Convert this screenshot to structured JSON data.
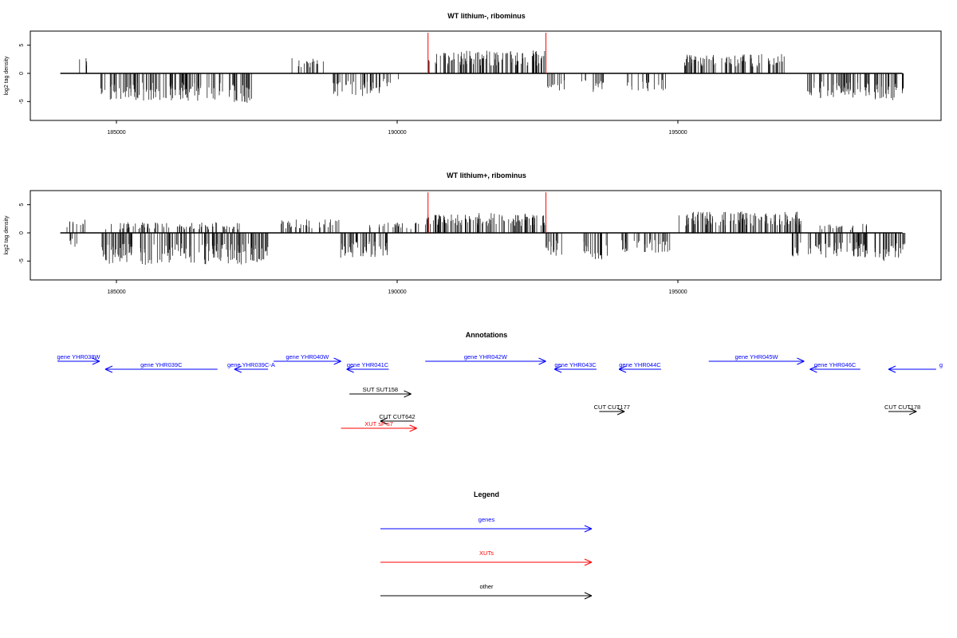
{
  "chart_data": [
    {
      "type": "bar",
      "title": "WT lithium-, ribominus",
      "ylabel": "log2 tag density",
      "xlim": [
        184000,
        199500
      ],
      "ylim": [
        -8,
        8
      ],
      "xticks": [
        185000,
        190000,
        195000
      ],
      "xtick_labels": [
        "185000",
        "190000",
        "195000"
      ],
      "yticks": [
        -5,
        0,
        5
      ],
      "ytick_labels": [
        "-5",
        "0",
        "5"
      ],
      "segments": [
        {
          "from": 184300,
          "to": 184550,
          "sign": 1,
          "mean": 2.0,
          "density": 0.3
        },
        {
          "from": 184700,
          "to": 186900,
          "sign": -1,
          "mean": 3.6,
          "density": 0.9
        },
        {
          "from": 187000,
          "to": 187450,
          "sign": -1,
          "mean": 4.0,
          "density": 0.9
        },
        {
          "from": 188100,
          "to": 188700,
          "sign": 1,
          "mean": 2.0,
          "density": 0.5
        },
        {
          "from": 188850,
          "to": 189700,
          "sign": -1,
          "mean": 3.0,
          "density": 0.8
        },
        {
          "from": 189750,
          "to": 190050,
          "sign": -1,
          "mean": 2.0,
          "density": 0.4
        },
        {
          "from": 190550,
          "to": 192650,
          "sign": 1,
          "mean": 3.0,
          "density": 1.0
        },
        {
          "from": 192650,
          "to": 193000,
          "sign": -1,
          "mean": 2.5,
          "density": 0.6
        },
        {
          "from": 193250,
          "to": 193700,
          "sign": -1,
          "mean": 2.5,
          "density": 0.6
        },
        {
          "from": 194100,
          "to": 194800,
          "sign": -1,
          "mean": 2.5,
          "density": 0.5
        },
        {
          "from": 195100,
          "to": 196900,
          "sign": 1,
          "mean": 2.6,
          "density": 0.9
        },
        {
          "from": 197300,
          "to": 198450,
          "sign": -1,
          "mean": 3.3,
          "density": 0.9
        },
        {
          "from": 198500,
          "to": 199050,
          "sign": -1,
          "mean": 3.6,
          "density": 0.9
        }
      ],
      "highlights": [
        {
          "x": 190550,
          "y": 7.2
        },
        {
          "x": 192650,
          "y": 7.2
        }
      ]
    },
    {
      "type": "bar",
      "title": "WT lithium+, ribominus",
      "ylabel": "log2 tag density",
      "xlim": [
        184000,
        199500
      ],
      "ylim": [
        -8,
        8
      ],
      "xticks": [
        185000,
        190000,
        195000
      ],
      "xtick_labels": [
        "185000",
        "190000",
        "195000"
      ],
      "yticks": [
        -5,
        0,
        5
      ],
      "ytick_labels": [
        "-5",
        "0",
        "5"
      ],
      "segments": [
        {
          "from": 184050,
          "to": 184450,
          "sign": 1,
          "mean": 1.8,
          "density": 0.5
        },
        {
          "from": 184100,
          "to": 184300,
          "sign": -1,
          "mean": 2.0,
          "density": 0.5
        },
        {
          "from": 184700,
          "to": 187700,
          "sign": -1,
          "mean": 4.2,
          "density": 1.0
        },
        {
          "from": 184800,
          "to": 187200,
          "sign": 1,
          "mean": 1.4,
          "density": 0.6
        },
        {
          "from": 187900,
          "to": 189000,
          "sign": 1,
          "mean": 1.8,
          "density": 0.6
        },
        {
          "from": 188950,
          "to": 189850,
          "sign": -1,
          "mean": 3.3,
          "density": 1.0
        },
        {
          "from": 189500,
          "to": 190400,
          "sign": 1,
          "mean": 1.4,
          "density": 0.5
        },
        {
          "from": 190500,
          "to": 192650,
          "sign": 1,
          "mean": 2.6,
          "density": 1.0
        },
        {
          "from": 192650,
          "to": 193000,
          "sign": -1,
          "mean": 3.0,
          "density": 0.8
        },
        {
          "from": 193300,
          "to": 193750,
          "sign": -1,
          "mean": 3.5,
          "density": 0.8
        },
        {
          "from": 194000,
          "to": 194900,
          "sign": -1,
          "mean": 2.6,
          "density": 0.7
        },
        {
          "from": 195000,
          "to": 197200,
          "sign": 1,
          "mean": 2.8,
          "density": 1.0
        },
        {
          "from": 197000,
          "to": 198400,
          "sign": -1,
          "mean": 3.3,
          "density": 0.9
        },
        {
          "from": 197500,
          "to": 198400,
          "sign": 1,
          "mean": 1.2,
          "density": 0.4
        },
        {
          "from": 198500,
          "to": 199050,
          "sign": -1,
          "mean": 3.8,
          "density": 1.0
        }
      ],
      "highlights": [
        {
          "x": 190550,
          "y": 7.2
        },
        {
          "x": 192650,
          "y": 7.2
        }
      ]
    }
  ],
  "annotations": {
    "title": "Annotations",
    "genes": [
      {
        "label": "gene YHR038W",
        "from": 183950,
        "to": 184700,
        "dir": "right",
        "row": 0
      },
      {
        "label": "gene YHR039C",
        "from": 184800,
        "to": 186800,
        "dir": "left",
        "row": 1
      },
      {
        "label": "gene YHR039C-A",
        "from": 187100,
        "to": 187700,
        "dir": "left",
        "row": 1
      },
      {
        "label": "gene YHR040W",
        "from": 187800,
        "to": 189000,
        "dir": "right",
        "row": 0
      },
      {
        "label": "gene YHR041C",
        "from": 189100,
        "to": 189850,
        "dir": "left",
        "row": 1
      },
      {
        "label": "gene YHR042W",
        "from": 190500,
        "to": 192650,
        "dir": "right",
        "row": 0
      },
      {
        "label": "gene YHR043C",
        "from": 192800,
        "to": 193550,
        "dir": "left",
        "row": 1
      },
      {
        "label": "gene YHR044C",
        "from": 193950,
        "to": 194700,
        "dir": "left",
        "row": 1
      },
      {
        "label": "gene YHR045W",
        "from": 195550,
        "to": 197250,
        "dir": "right",
        "row": 0
      },
      {
        "label": "gene YHR046C",
        "from": 197350,
        "to": 198250,
        "dir": "left",
        "row": 1
      },
      {
        "label": "g",
        "from": 198750,
        "to": 199600,
        "dir": "left",
        "row": 1
      }
    ],
    "others": [
      {
        "label": "SUT SUT158",
        "from": 189150,
        "to": 190250,
        "dir": "right",
        "y": 494
      },
      {
        "label": "CUT CUT177",
        "from": 193600,
        "to": 194050,
        "dir": "right",
        "y": 516
      },
      {
        "label": "CUT CUT642",
        "from": 189700,
        "to": 190300,
        "dir": "left",
        "y": 528
      },
      {
        "label": "CUT CUT178",
        "from": 198750,
        "to": 199250,
        "dir": "right",
        "y": 516
      }
    ],
    "xuts": [
      {
        "label": "XUT sF-s7",
        "from": 189000,
        "to": 190350,
        "dir": "right",
        "y": 537
      }
    ]
  },
  "legend": {
    "title": "Legend",
    "items": [
      {
        "label": "genes",
        "color": "#0000ff"
      },
      {
        "label": "XUTs",
        "color": "#ff0000"
      },
      {
        "label": "other",
        "color": "#000000"
      }
    ]
  },
  "colors": {
    "gene": "#0000ff",
    "xut": "#ff0000",
    "other": "#000000",
    "highlight": "#ff0000"
  }
}
